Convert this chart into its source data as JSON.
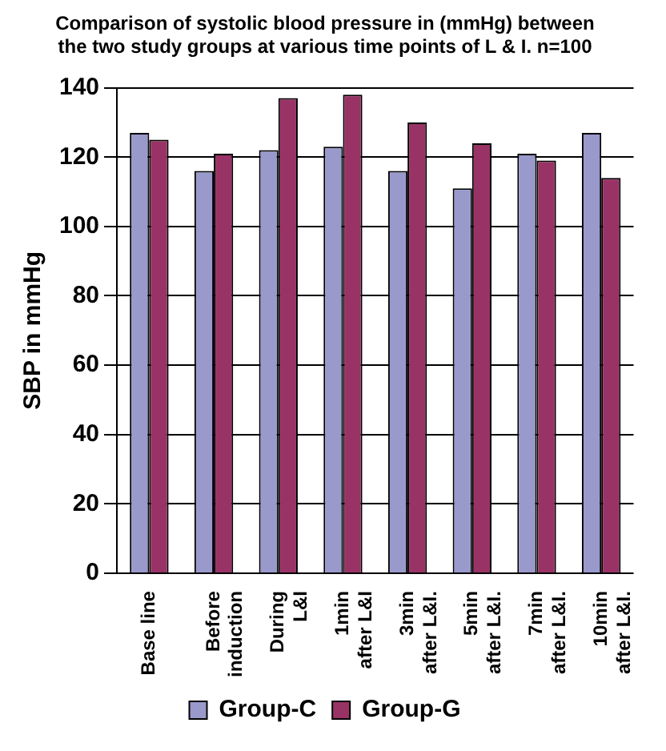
{
  "chart_data": {
    "type": "bar",
    "title": [
      "Comparison of systolic blood pressure in (mmHg) between",
      "the two study groups at various time points of L & I. n=100"
    ],
    "ylabel": "SBP in mmHg",
    "categories": [
      [
        "Base line"
      ],
      [
        "Before",
        "induction"
      ],
      [
        "During",
        "L&I"
      ],
      [
        "1min",
        "after L&I"
      ],
      [
        "3min",
        "after L&I."
      ],
      [
        "5min",
        "after L&I."
      ],
      [
        "7min",
        "after L&I."
      ],
      [
        "10min",
        "after L&I."
      ]
    ],
    "series": [
      {
        "name": "Group-C",
        "color": "#9999cc",
        "values": [
          127,
          116,
          122,
          123,
          116,
          111,
          121,
          127
        ]
      },
      {
        "name": "Group-G",
        "color": "#993366",
        "values": [
          125,
          121,
          137,
          138,
          130,
          124,
          119,
          114
        ]
      }
    ],
    "ylim": [
      0,
      140
    ],
    "yticks": [
      0,
      20,
      40,
      60,
      80,
      100,
      120,
      140
    ],
    "grid": "y",
    "legend": "bottom"
  }
}
